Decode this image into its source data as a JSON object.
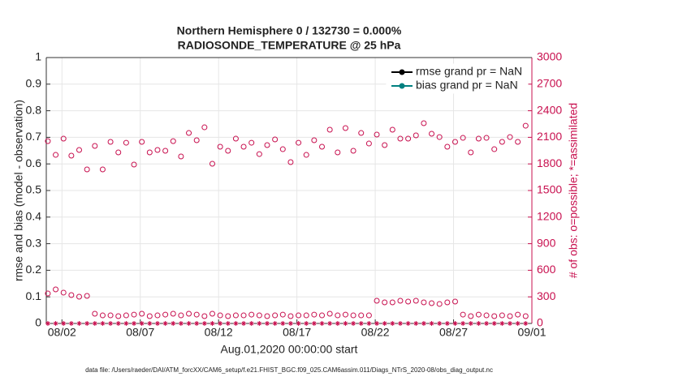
{
  "chart_data": {
    "type": "scatter",
    "title": "Northern Hemisphere 0 / 132730 = 0.000%",
    "subtitle": "RADIOSONDE_TEMPERATURE @ 25 hPa",
    "xlabel": "Aug.01,2020 00:00:00 start",
    "ylabel": "rmse and bias (model - observation)",
    "y2label": "# of obs: o=possible; *=assimilated",
    "footnote": "data file: /Users/raeder/DAI/ATM_forcXX/CAM6_setup/f.e21.FHIST_BGC.f09_025.CAM6assim.011/Diags_NTrS_2020-08/obs_diag_output.nc",
    "xlim": [
      0,
      31
    ],
    "xticks": [
      {
        "value": 1,
        "label": "08/02"
      },
      {
        "value": 6,
        "label": "08/07"
      },
      {
        "value": 11,
        "label": "08/12"
      },
      {
        "value": 16,
        "label": "08/17"
      },
      {
        "value": 21,
        "label": "08/22"
      },
      {
        "value": 26,
        "label": "08/27"
      },
      {
        "value": 31,
        "label": "09/01"
      }
    ],
    "ylim": [
      0,
      1
    ],
    "yticks": [
      0,
      0.1,
      0.2,
      0.3,
      0.4,
      0.5,
      0.6,
      0.7,
      0.8,
      0.9,
      1
    ],
    "y2lim": [
      0,
      3000
    ],
    "y2ticks": [
      0,
      300,
      600,
      900,
      1200,
      1500,
      1800,
      2100,
      2400,
      2700,
      3000
    ],
    "grid": true,
    "legend_position": "upper right",
    "legend": [
      {
        "name": "rmse grand pr = NaN",
        "color": "#000000"
      },
      {
        "name": "bias grand pr = NaN",
        "color": "#008080"
      }
    ],
    "x": [
      0.1,
      0.6,
      1.1,
      1.6,
      2.1,
      2.6,
      3.1,
      3.6,
      4.1,
      4.6,
      5.1,
      5.6,
      6.1,
      6.6,
      7.1,
      7.6,
      8.1,
      8.6,
      9.1,
      9.6,
      10.1,
      10.6,
      11.1,
      11.6,
      12.1,
      12.6,
      13.1,
      13.6,
      14.1,
      14.6,
      15.1,
      15.6,
      16.1,
      16.6,
      17.1,
      17.6,
      18.1,
      18.6,
      19.1,
      19.6,
      20.1,
      20.6,
      21.1,
      21.6,
      22.1,
      22.6,
      23.1,
      23.6,
      24.1,
      24.6,
      25.1,
      25.6,
      26.1,
      26.6,
      27.1,
      27.6,
      28.1,
      28.6,
      29.1,
      29.6,
      30.1,
      30.6
    ],
    "obs": [
      {
        "marker": "circle",
        "color": "#c8104f",
        "axis": "y2",
        "values": [
          2057,
          1902,
          2085,
          1893,
          1957,
          1738,
          2003,
          1738,
          2049,
          1930,
          2039,
          1793,
          2049,
          1930,
          1957,
          1948,
          2057,
          1884,
          2149,
          2067,
          2213,
          1802,
          1994,
          1948,
          2085,
          1994,
          2039,
          1911,
          2012,
          2076,
          1966,
          1820,
          2039,
          1902,
          2067,
          1994,
          2186,
          1930,
          2204,
          1948,
          2149,
          2030,
          2131,
          2012,
          2186,
          2085,
          2085,
          2122,
          2259,
          2140,
          2103,
          1994,
          2049,
          2094,
          1930,
          2085,
          2094,
          1966,
          2049,
          2103,
          2049,
          2231
        ]
      },
      {
        "marker": "circle",
        "color": "#c8104f",
        "axis": "y2",
        "values": [
          338,
          384,
          348,
          320,
          302,
          311,
          110,
          91,
          91,
          82,
          91,
          100,
          110,
          82,
          91,
          100,
          110,
          91,
          110,
          100,
          82,
          110,
          91,
          82,
          91,
          91,
          100,
          91,
          82,
          91,
          100,
          82,
          91,
          91,
          100,
          91,
          110,
          91,
          100,
          91,
          91,
          91,
          256,
          238,
          238,
          256,
          247,
          256,
          238,
          229,
          220,
          238,
          247,
          100,
          82,
          100,
          91,
          82,
          91,
          82,
          100,
          82
        ]
      },
      {
        "marker": "star",
        "color": "#c8104f",
        "axis": "y2",
        "values": [
          0,
          0,
          0,
          0,
          0,
          0,
          0,
          0,
          0,
          0,
          0,
          0,
          0,
          0,
          0,
          0,
          0,
          0,
          0,
          0,
          0,
          0,
          0,
          0,
          0,
          0,
          0,
          0,
          0,
          0,
          0,
          0,
          0,
          0,
          0,
          0,
          0,
          0,
          0,
          0,
          0,
          0,
          0,
          0,
          0,
          0,
          0,
          0,
          0,
          0,
          0,
          0,
          0,
          0,
          0,
          0,
          0,
          0,
          0,
          0,
          0,
          0
        ]
      }
    ]
  }
}
